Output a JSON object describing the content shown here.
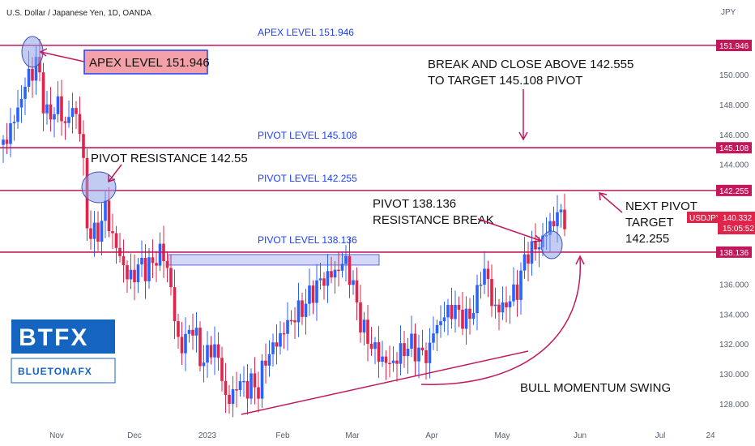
{
  "chart_data": {
    "type": "candlestick",
    "title": "U.S. Dollar / Japanese Yen, 1D, OANDA",
    "currency": "JPY",
    "ylim": [
      127,
      153.2
    ],
    "y_ticks": [
      "150.000",
      "148.000",
      "146.000",
      "144.000",
      "136.000",
      "134.000",
      "132.000",
      "130.000",
      "128.000"
    ],
    "x_ticks": [
      "Nov",
      "Dec",
      "2023",
      "Feb",
      "Mar",
      "Apr",
      "May",
      "Jun",
      "Jul",
      "24"
    ],
    "up_color": "#2962ff",
    "down_color": "#e0244a",
    "level_color": "#c2185b",
    "levels": [
      {
        "name": "apex",
        "label": "APEX LEVEL 151.946",
        "value": 151.946,
        "tag": "151.946"
      },
      {
        "name": "pivot-145",
        "label": "PIVOT LEVEL 145.108",
        "value": 145.108,
        "tag": "145.108"
      },
      {
        "name": "pivot-142",
        "label": "PIVOT LEVEL 142.255",
        "value": 142.255,
        "tag": "142.255"
      },
      {
        "name": "pivot-138",
        "label": "PIVOT LEVEL 138.136",
        "value": 138.136,
        "tag": "138.136"
      }
    ],
    "last_price": {
      "symbol": "USDJPY",
      "value": "140.332",
      "countdown": "15:05:52"
    },
    "annotations": {
      "apex_box": "APEX LEVEL 151.946",
      "break_line1": "BREAK AND CLOSE ABOVE 142.555",
      "break_line2": "TO TARGET 145.108 PIVOT",
      "pivot_resistance": "PIVOT RESISTANCE 142.55",
      "res_break_line1": "PIVOT 138.136",
      "res_break_line2": "RESISTANCE BREAK",
      "next_pivot_line1": "NEXT PIVOT",
      "next_pivot_line2": "TARGET",
      "next_pivot_line3": "142.255",
      "bull_swing": "BULL MOMENTUM SWING"
    },
    "price_path": [
      {
        "d": 0,
        "c": 145.3
      },
      {
        "d": 8,
        "c": 147.3
      },
      {
        "d": 14,
        "c": 149.5
      },
      {
        "d": 18,
        "c": 150.3
      },
      {
        "d": 21,
        "c": 151.0
      },
      {
        "d": 24,
        "c": 148.6
      },
      {
        "d": 28,
        "c": 146.8
      },
      {
        "d": 33,
        "c": 148.2
      },
      {
        "d": 38,
        "c": 146.6
      },
      {
        "d": 43,
        "c": 147.8
      },
      {
        "d": 48,
        "c": 146.3
      },
      {
        "d": 52,
        "c": 139.6
      },
      {
        "d": 56,
        "c": 139.2
      },
      {
        "d": 60,
        "c": 139.8
      },
      {
        "d": 64,
        "c": 141.5
      },
      {
        "d": 66,
        "c": 139.4
      },
      {
        "d": 70,
        "c": 138.4
      },
      {
        "d": 73,
        "c": 137.7
      },
      {
        "d": 76,
        "c": 136.5
      },
      {
        "d": 80,
        "c": 136.5
      },
      {
        "d": 85,
        "c": 137.4
      },
      {
        "d": 89,
        "c": 136.9
      },
      {
        "d": 93,
        "c": 137.6
      },
      {
        "d": 96,
        "c": 138.0
      },
      {
        "d": 100,
        "c": 137.9
      },
      {
        "d": 104,
        "c": 135.3
      },
      {
        "d": 107,
        "c": 132.5
      },
      {
        "d": 111,
        "c": 131.6
      },
      {
        "d": 115,
        "c": 133.2
      },
      {
        "d": 118,
        "c": 132.9
      },
      {
        "d": 121,
        "c": 131.3
      },
      {
        "d": 124,
        "c": 130.7
      },
      {
        "d": 128,
        "c": 131.9
      },
      {
        "d": 132,
        "c": 131.4
      },
      {
        "d": 135,
        "c": 129.8
      },
      {
        "d": 138,
        "c": 127.9
      },
      {
        "d": 142,
        "c": 128.7
      },
      {
        "d": 145,
        "c": 129.6
      },
      {
        "d": 149,
        "c": 129.0
      },
      {
        "d": 153,
        "c": 129.4
      },
      {
        "d": 157,
        "c": 128.8
      },
      {
        "d": 160,
        "c": 130.2
      },
      {
        "d": 163,
        "c": 131.3
      },
      {
        "d": 167,
        "c": 131.8
      },
      {
        "d": 172,
        "c": 132.7
      },
      {
        "d": 176,
        "c": 133.4
      },
      {
        "d": 180,
        "c": 133.9
      },
      {
        "d": 184,
        "c": 134.3
      },
      {
        "d": 188,
        "c": 135.0
      },
      {
        "d": 192,
        "c": 135.7
      },
      {
        "d": 196,
        "c": 136.2
      },
      {
        "d": 200,
        "c": 136.5
      },
      {
        "d": 204,
        "c": 136.7
      },
      {
        "d": 208,
        "c": 137.2
      },
      {
        "d": 211,
        "c": 137.6
      },
      {
        "d": 214,
        "c": 136.6
      },
      {
        "d": 217,
        "c": 135.3
      },
      {
        "d": 220,
        "c": 133.7
      },
      {
        "d": 223,
        "c": 132.7
      },
      {
        "d": 227,
        "c": 132.0
      },
      {
        "d": 231,
        "c": 131.3
      },
      {
        "d": 235,
        "c": 130.9
      },
      {
        "d": 239,
        "c": 130.6
      },
      {
        "d": 243,
        "c": 131.1
      },
      {
        "d": 247,
        "c": 131.6
      },
      {
        "d": 251,
        "c": 132.0
      },
      {
        "d": 255,
        "c": 131.6
      },
      {
        "d": 259,
        "c": 131.2
      },
      {
        "d": 263,
        "c": 131.5
      },
      {
        "d": 266,
        "c": 133.1
      },
      {
        "d": 270,
        "c": 133.5
      },
      {
        "d": 274,
        "c": 134.2
      },
      {
        "d": 278,
        "c": 134.3
      },
      {
        "d": 282,
        "c": 134.0
      },
      {
        "d": 286,
        "c": 133.5
      },
      {
        "d": 290,
        "c": 134.4
      },
      {
        "d": 293,
        "c": 135.4
      },
      {
        "d": 296,
        "c": 137.2
      },
      {
        "d": 299,
        "c": 136.4
      },
      {
        "d": 302,
        "c": 134.3
      },
      {
        "d": 305,
        "c": 134.6
      },
      {
        "d": 308,
        "c": 134.2
      },
      {
        "d": 312,
        "c": 135.1
      },
      {
        "d": 316,
        "c": 135.2
      },
      {
        "d": 319,
        "c": 136.5
      },
      {
        "d": 322,
        "c": 137.6
      },
      {
        "d": 325,
        "c": 138.4
      },
      {
        "d": 328,
        "c": 138.3
      },
      {
        "d": 331,
        "c": 138.7
      },
      {
        "d": 334,
        "c": 139.2
      },
      {
        "d": 338,
        "c": 140.0
      },
      {
        "d": 341,
        "c": 140.5
      },
      {
        "d": 344,
        "c": 140.7
      },
      {
        "d": 348,
        "c": 140.3
      }
    ]
  },
  "logo": {
    "line1": "BTFX",
    "line2": "BLUETONAFX"
  }
}
